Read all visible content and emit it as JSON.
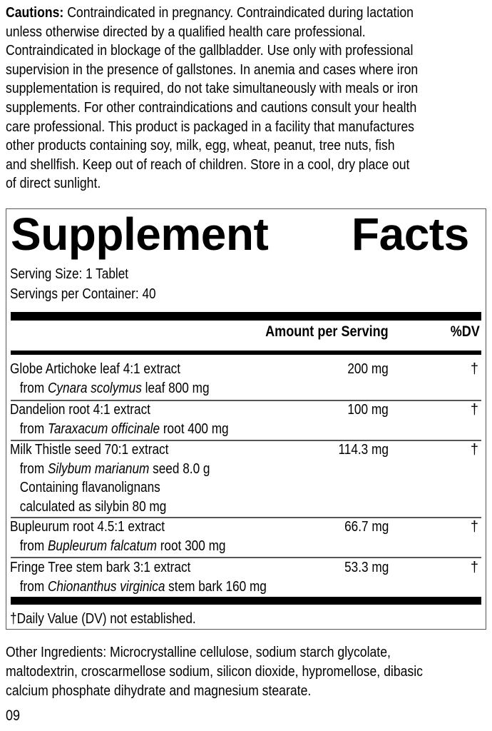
{
  "cautions": {
    "label": "Cautions:",
    "lines": [
      " Contraindicated in pregnancy. Contraindicated during lactation",
      "unless otherwise directed by a qualified health care professional.",
      "Contraindicated in blockage of the gallbladder. Use only with professional",
      "supervision in the presence of gallstones. In anemia and cases where iron",
      "supplementation is required, do not take simultaneously with meals or iron",
      "supplements. For other contraindications and cautions consult your health",
      "care professional. This product is packaged in a facility that manufactures",
      "other products containing soy, milk, egg, wheat, peanut, tree nuts, fish",
      "and shellfish. Keep out of reach of children. Store in a cool, dry place out",
      "of direct sunlight."
    ]
  },
  "facts": {
    "title_word1": "Supplement",
    "title_word2": "Facts",
    "serving_size": "Serving Size: 1 Tablet",
    "servings_per_container": "Servings per Container: 40",
    "header_amount": "Amount per Serving",
    "header_dv": "%DV",
    "rows": [
      {
        "name": "Globe Artichoke leaf 4:1 extract",
        "from": "from ",
        "species": "Cynara scolymus",
        "rest": " leaf 800 mg",
        "amount": "200 mg",
        "dv": "†"
      },
      {
        "name": "Dandelion root 4:1 extract",
        "from": "from ",
        "species": "Taraxacum officinale",
        "rest": " root 400 mg",
        "amount": "100 mg",
        "dv": "†"
      },
      {
        "name": "Milk Thistle seed 70:1 extract",
        "from": "from ",
        "species": "Silybum marianum",
        "rest": " seed 8.0 g",
        "extra1": "Containing flavanolignans",
        "extra2": "calculated as silybin 80 mg",
        "amount": "114.3 mg",
        "dv": "†"
      },
      {
        "name": "Bupleurum root 4.5:1 extract",
        "from": "from ",
        "species": "Bupleurum falcatum",
        "rest": " root 300 mg",
        "amount": "66.7 mg",
        "dv": "†"
      },
      {
        "name": "Fringe Tree stem bark 3:1 extract",
        "from": "from ",
        "species": "Chionanthus virginica",
        "rest": " stem bark 160 mg",
        "amount": "53.3 mg",
        "dv": "†"
      }
    ],
    "footnote": "†Daily Value (DV) not established."
  },
  "other_ingredients": {
    "lines": [
      "Other Ingredients: Microcrystalline cellulose, sodium starch glycolate,",
      "maltodextrin, croscarmellose sodium, silicon dioxide, hypromellose, dibasic",
      "calcium phosphate dihydrate and magnesium stearate."
    ]
  },
  "code": "09"
}
